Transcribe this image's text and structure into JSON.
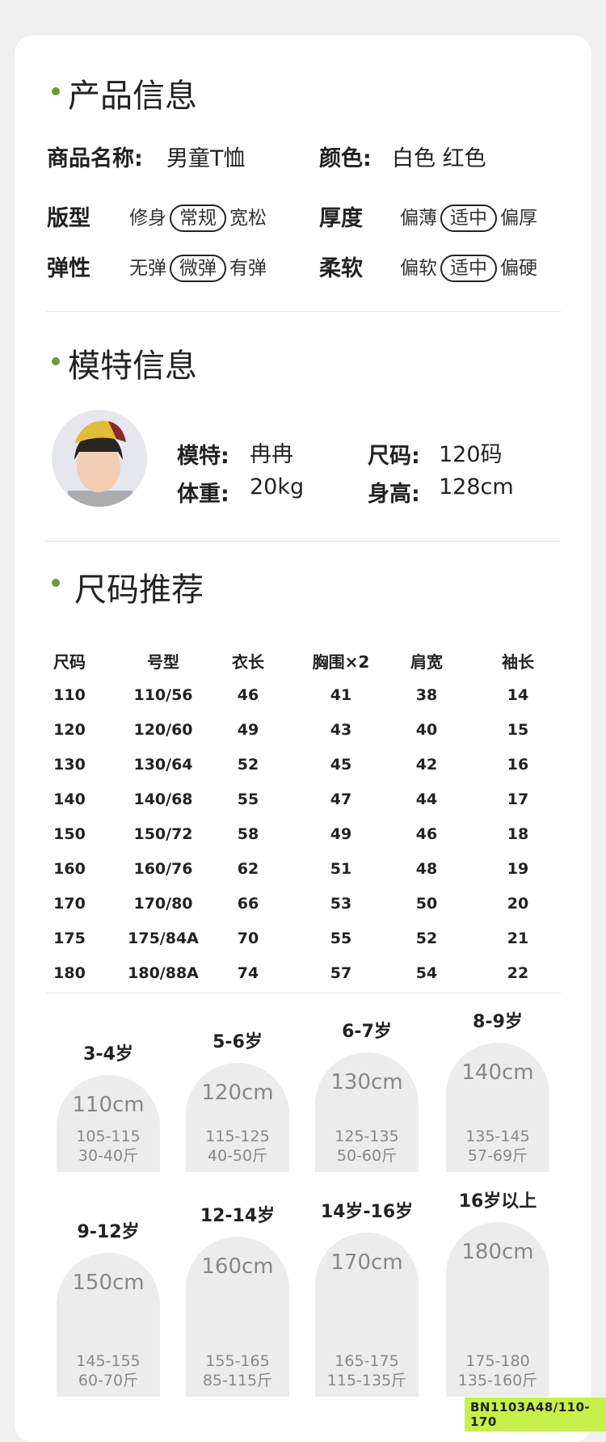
{
  "product": {
    "title": "产品信息",
    "name_label": "商品名称:",
    "name_value": "男童T恤",
    "color_label": "颜色:",
    "color_value": "白色 红色",
    "attrs": [
      {
        "label": "版型",
        "options": [
          "修身",
          "常规",
          "宽松"
        ],
        "selected": 1
      },
      {
        "label": "厚度",
        "options": [
          "偏薄",
          "适中",
          "偏厚"
        ],
        "selected": 1
      },
      {
        "label": "弹性",
        "options": [
          "无弹",
          "微弹",
          "有弹"
        ],
        "selected": 1
      },
      {
        "label": "柔软",
        "options": [
          "偏软",
          "适中",
          "偏硬"
        ],
        "selected": 1
      }
    ]
  },
  "model": {
    "title": "模特信息",
    "name_label": "模特:",
    "name_value": "冉冉",
    "size_label": "尺码:",
    "size_value": "120码",
    "weight_label": "体重:",
    "weight_value": "20kg",
    "height_label": "身高:",
    "height_value": "128cm"
  },
  "size": {
    "title": "尺码推荐",
    "headers": [
      "尺码",
      "号型",
      "衣长",
      "胸围×2",
      "肩宽",
      "袖长"
    ],
    "rows": [
      [
        "110",
        "110/56",
        "46",
        "41",
        "38",
        "14"
      ],
      [
        "120",
        "120/60",
        "49",
        "43",
        "40",
        "15"
      ],
      [
        "130",
        "130/64",
        "52",
        "45",
        "42",
        "16"
      ],
      [
        "140",
        "140/68",
        "55",
        "47",
        "44",
        "17"
      ],
      [
        "150",
        "150/72",
        "58",
        "49",
        "46",
        "18"
      ],
      [
        "160",
        "160/76",
        "62",
        "51",
        "48",
        "19"
      ],
      [
        "170",
        "170/80",
        "66",
        "53",
        "50",
        "20"
      ],
      [
        "175",
        "175/84A",
        "70",
        "55",
        "52",
        "21"
      ],
      [
        "180",
        "180/88A",
        "74",
        "57",
        "54",
        "22"
      ]
    ],
    "cards": [
      {
        "age": "3-4岁",
        "height": "110cm",
        "range": "105-115",
        "weight": "30-40斤"
      },
      {
        "age": "5-6岁",
        "height": "120cm",
        "range": "115-125",
        "weight": "40-50斤"
      },
      {
        "age": "6-7岁",
        "height": "130cm",
        "range": "125-135",
        "weight": "50-60斤"
      },
      {
        "age": "8-9岁",
        "height": "140cm",
        "range": "135-145",
        "weight": "57-69斤"
      },
      {
        "age": "9-12岁",
        "height": "150cm",
        "range": "145-155",
        "weight": "60-70斤"
      },
      {
        "age": "12-14岁",
        "height": "160cm",
        "range": "155-165",
        "weight": "85-115斤"
      },
      {
        "age": "14岁-16岁",
        "height": "170cm",
        "range": "165-175",
        "weight": "115-135斤"
      },
      {
        "age": "16岁以上",
        "height": "180cm",
        "range": "175-180",
        "weight": "135-160斤"
      }
    ]
  },
  "code": "BN1103A48/110-170",
  "colors": {
    "accent": "#6a9a3a",
    "code_bg": "#c6f04a"
  }
}
